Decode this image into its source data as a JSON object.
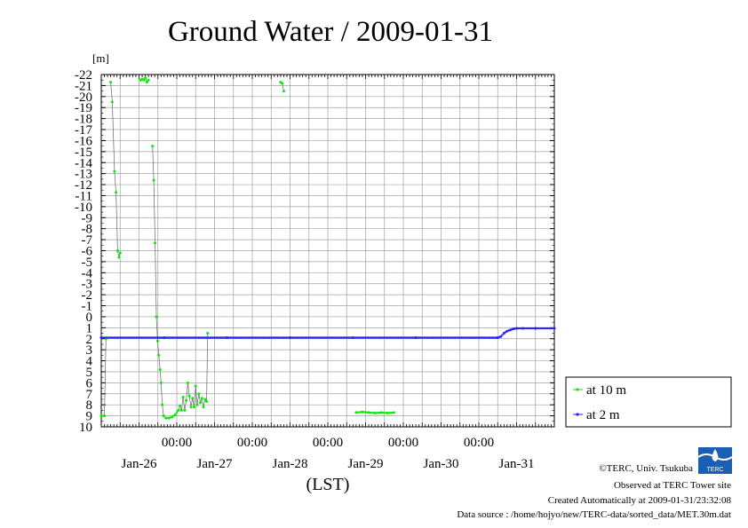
{
  "chart_data": {
    "type": "line",
    "title": "Ground Water / 2009-01-31",
    "ylabel": "[m]",
    "xlabel": "(LST)",
    "ylim": [
      -22,
      10
    ],
    "y_inverted": true,
    "yticks": [
      -22,
      -21,
      -20,
      -19,
      -18,
      -17,
      -16,
      -15,
      -14,
      -13,
      -12,
      -11,
      -10,
      -9,
      -8,
      -7,
      -6,
      -5,
      -4,
      -3,
      -2,
      -1,
      0,
      1,
      2,
      3,
      4,
      5,
      6,
      7,
      8,
      9,
      10
    ],
    "xlim_hours": [
      0,
      144
    ],
    "x_time_labels": [
      "00:00",
      "00:00",
      "00:00",
      "00:00",
      "00:00"
    ],
    "x_time_hours": [
      24,
      48,
      72,
      96,
      120
    ],
    "x_date_labels": [
      "Jan-26",
      "Jan-27",
      "Jan-28",
      "Jan-29",
      "Jan-30",
      "Jan-31"
    ],
    "x_date_hours": [
      12,
      36,
      60,
      84,
      108,
      132
    ],
    "grid": true,
    "legend_position": "right",
    "series": [
      {
        "name": "at 10 m",
        "color": "#00ee00",
        "segments": [
          [
            [
              0,
              9
            ],
            [
              1,
              9
            ],
            [
              1.5,
              2
            ]
          ],
          [
            [
              3,
              -21.3
            ],
            [
              3.5,
              -19.5
            ],
            [
              4.2,
              -13.2
            ],
            [
              4.7,
              -11.3
            ],
            [
              5.2,
              -6
            ],
            [
              5.6,
              -5.4
            ],
            [
              6,
              -5.8
            ]
          ],
          [
            [
              12.5,
              -21.5
            ],
            [
              13,
              -21.6
            ],
            [
              13.5,
              -21.5
            ],
            [
              14,
              -21.7
            ],
            [
              14.5,
              -21.3
            ],
            [
              15,
              -21.5
            ]
          ],
          [
            [
              16.3,
              -15.5
            ],
            [
              16.7,
              -12.4
            ],
            [
              17.1,
              -6.7
            ],
            [
              17.5,
              0
            ],
            [
              17.9,
              2.2
            ],
            [
              18.3,
              3.5
            ],
            [
              18.7,
              4.8
            ],
            [
              19,
              6
            ],
            [
              19.4,
              8
            ],
            [
              19.8,
              9
            ],
            [
              20.5,
              9.2
            ],
            [
              21.5,
              9.2
            ],
            [
              22.5,
              9.1
            ],
            [
              23.5,
              8.9
            ],
            [
              24.5,
              8.5
            ],
            [
              25,
              8.1
            ],
            [
              25.5,
              8.5
            ],
            [
              26,
              7.3
            ],
            [
              26.5,
              8.5
            ],
            [
              27,
              7.6
            ],
            [
              27.5,
              6
            ],
            [
              28,
              7.2
            ],
            [
              28.5,
              8.2
            ],
            [
              29,
              7.4
            ],
            [
              29.5,
              8.2
            ],
            [
              30,
              6.3
            ],
            [
              30.5,
              8
            ],
            [
              31,
              7
            ],
            [
              31.5,
              7.8
            ],
            [
              32,
              7.4
            ],
            [
              32.5,
              8.2
            ],
            [
              33,
              7.5
            ],
            [
              33.5,
              7.7
            ],
            [
              33.8,
              1.5
            ]
          ],
          [
            [
              57,
              -21.3
            ],
            [
              57.5,
              -21.2
            ],
            [
              58,
              -20.5
            ]
          ],
          [
            [
              81,
              8.7
            ],
            [
              83,
              8.65
            ],
            [
              85,
              8.7
            ],
            [
              87,
              8.75
            ],
            [
              89,
              8.7
            ],
            [
              91,
              8.75
            ],
            [
              93,
              8.7
            ]
          ]
        ]
      },
      {
        "name": "at 2 m",
        "color": "#2222ff",
        "segments": [
          [
            [
              0,
              1.9
            ],
            [
              20,
              1.9
            ],
            [
              40,
              1.9
            ],
            [
              60,
              1.9
            ],
            [
              80,
              1.9
            ],
            [
              100,
              1.9
            ],
            [
              126,
              1.9
            ],
            [
              127,
              1.8
            ],
            [
              128,
              1.5
            ],
            [
              129,
              1.3
            ],
            [
              130,
              1.2
            ],
            [
              131,
              1.1
            ],
            [
              132,
              1.05
            ],
            [
              134,
              1.05
            ],
            [
              138,
              1.05
            ],
            [
              144,
              1.05
            ]
          ]
        ]
      }
    ]
  },
  "legend": {
    "items": [
      "at 10 m",
      "at 2 m"
    ]
  },
  "credits": [
    "©TERC, Univ. Tsukuba",
    "Observed at TERC Tower site",
    "Created Automatically at 2009-01-31/23:32:08",
    "Data source : /home/hojyo/new/TERC-data/sorted_data/MET.30m.dat"
  ],
  "logo": {
    "text": "TERC",
    "color": "#1a5fb4"
  }
}
